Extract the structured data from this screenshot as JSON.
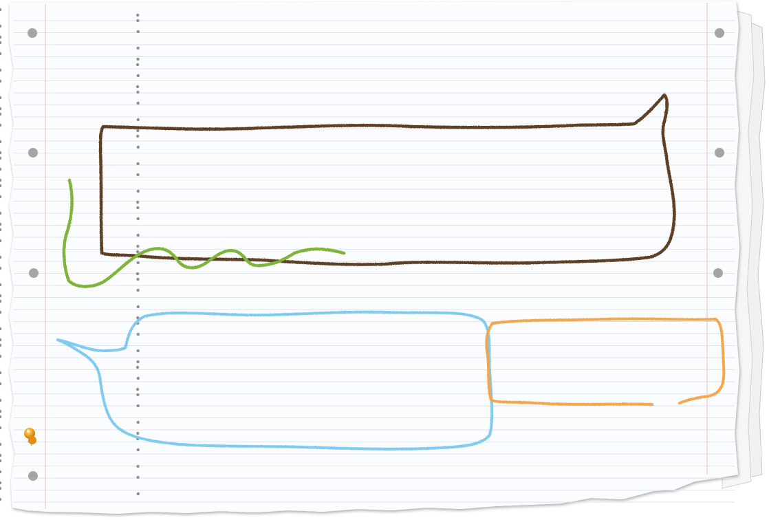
{
  "colors": {
    "background": "#ffffff",
    "paper": "#fbfcfe",
    "back_sheet": "#f4f4f4",
    "ruled_line": "#dde4ee",
    "margin_line": "#f2c8c8",
    "punch_hole": "#9a9a9a",
    "brown_crayon": "#5c3f26",
    "green_crayon": "#7fb33a",
    "blue_crayon": "#7fcaee",
    "orange_crayon": "#f2a64d",
    "pushpin": "#f0a21f"
  },
  "icons": {
    "pushpin": "pushpin-icon"
  }
}
